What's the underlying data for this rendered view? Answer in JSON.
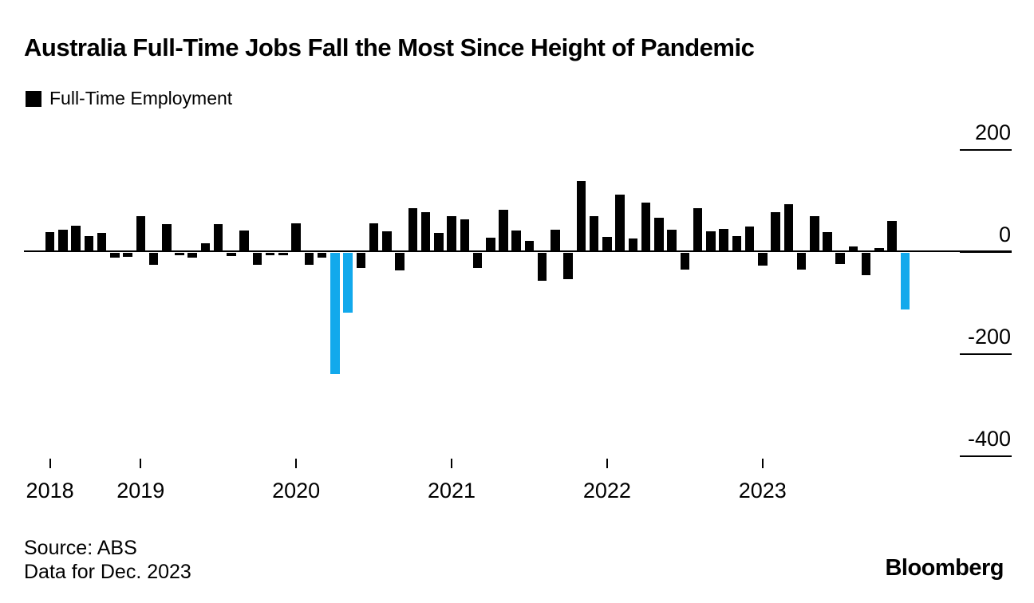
{
  "title": "Australia Full-Time Jobs Fall the Most Since Height of Pandemic",
  "legend": {
    "label": "Full-Time Employment",
    "swatch_color": "#000000"
  },
  "footer": {
    "source": "Source: ABS",
    "note": "Data for Dec. 2023",
    "brand": "Bloomberg"
  },
  "colors": {
    "bar": "#000000",
    "highlight": "#12A9EC",
    "axis": "#000000",
    "background": "#FFFFFF"
  },
  "chart_data": {
    "type": "bar",
    "title": "Australia Full-Time Jobs Fall the Most Since Height of Pandemic",
    "series_name": "Full-Time Employment",
    "x": [
      "2018-06",
      "2018-07",
      "2018-08",
      "2018-09",
      "2018-10",
      "2018-11",
      "2018-12",
      "2019-01",
      "2019-02",
      "2019-03",
      "2019-04",
      "2019-05",
      "2019-06",
      "2019-07",
      "2019-08",
      "2019-09",
      "2019-10",
      "2019-11",
      "2019-12",
      "2020-01",
      "2020-02",
      "2020-03",
      "2020-04",
      "2020-05",
      "2020-06",
      "2020-07",
      "2020-08",
      "2020-09",
      "2020-10",
      "2020-11",
      "2020-12",
      "2021-01",
      "2021-02",
      "2021-03",
      "2021-04",
      "2021-05",
      "2021-06",
      "2021-07",
      "2021-08",
      "2021-09",
      "2021-10",
      "2021-11",
      "2021-12",
      "2022-01",
      "2022-02",
      "2022-03",
      "2022-04",
      "2022-05",
      "2022-06",
      "2022-07",
      "2022-08",
      "2022-09",
      "2022-10",
      "2022-11",
      "2022-12",
      "2023-01",
      "2023-02",
      "2023-03",
      "2023-04",
      "2023-05",
      "2023-06",
      "2023-07",
      "2023-08",
      "2023-09",
      "2023-10",
      "2023-11",
      "2023-12"
    ],
    "values": [
      38,
      42,
      50,
      30,
      36,
      -9,
      -8,
      68,
      -23,
      53,
      -5,
      -9,
      16,
      53,
      -6,
      40,
      -23,
      -4,
      -4,
      54,
      -23,
      -10,
      -237,
      -117,
      -30,
      54,
      39,
      -34,
      85,
      77,
      36,
      69,
      62,
      -30,
      26,
      82,
      40,
      20,
      -54,
      42,
      -51,
      138,
      69,
      28,
      111,
      25,
      95,
      66,
      42,
      -33,
      85,
      39,
      44,
      30,
      49,
      -25,
      77,
      92,
      -33,
      68,
      37,
      -22,
      9,
      -43,
      7,
      60,
      -111
    ],
    "highlighted_indices": [
      22,
      23,
      66
    ],
    "bar_color": "#000000",
    "highlight_color": "#12A9EC",
    "yticks": [
      200,
      0,
      -200,
      -400
    ],
    "ylim": [
      -400,
      200
    ],
    "xticks": [
      {
        "label": "2018",
        "month_index": 0
      },
      {
        "label": "2019",
        "month_index": 7
      },
      {
        "label": "2020",
        "month_index": 19
      },
      {
        "label": "2021",
        "month_index": 31
      },
      {
        "label": "2022",
        "month_index": 43
      },
      {
        "label": "2023",
        "month_index": 55
      }
    ],
    "legend_position": "top-left",
    "grid": false
  }
}
